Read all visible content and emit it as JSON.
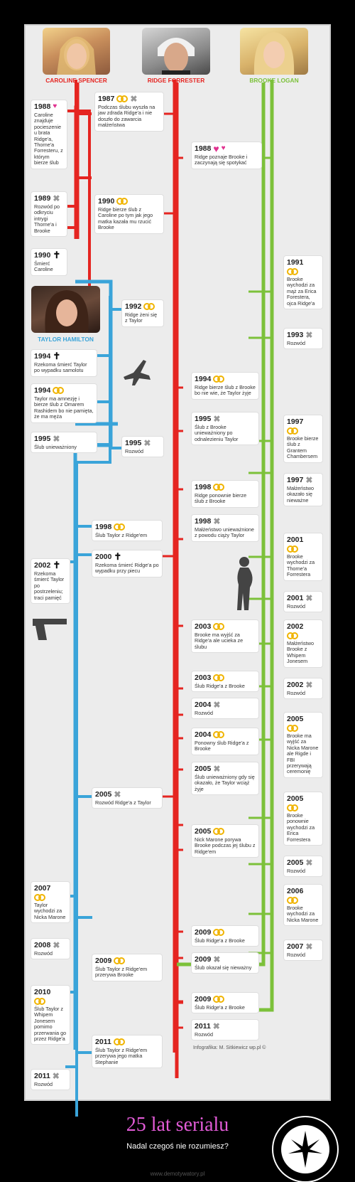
{
  "characters": {
    "caroline": {
      "name": "CAROLINE SPENCER",
      "color": "#e52521"
    },
    "ridge": {
      "name": "RIDGE FORRESTER",
      "color": "#e52521"
    },
    "brooke": {
      "name": "BROOKE LOGAN",
      "color": "#7cc13a"
    },
    "taylor": {
      "name": "TAYLOR HAMILTON",
      "color": "#3aa4d9"
    }
  },
  "colors": {
    "red": "#e52521",
    "green": "#7cc13a",
    "blue": "#3aa4d9",
    "ring": "#f0b400",
    "heart": "#e0318f"
  },
  "cards": {
    "c1988": {
      "year": "1988",
      "text": "Caroline znajduje pocieszenie u brata Ridge'a, Thorne'a Forresteru, z którym bierze ślub"
    },
    "c1989": {
      "year": "1989",
      "text": "Rozwód po odkryciu intrygi Thorne'a i Brooke"
    },
    "c1990": {
      "year": "1990",
      "text": "Śmierć Caroline"
    },
    "r1987": {
      "year": "1987",
      "text": "Podczas ślubu wyszła na jaw zdrada Ridge'a i nie doszło do zawarcia małżeństwa"
    },
    "r1990": {
      "year": "1990",
      "text": "Ridge bierze ślub z Caroline po tym jak jego matka kazała mu rzucić Brooke"
    },
    "r1988": {
      "year": "1988",
      "text": "Ridge poznaje Brooke i zaczynają się spotykać"
    },
    "t1992": {
      "year": "1992",
      "text": "Ridge żeni się z Taylor"
    },
    "t1994a": {
      "year": "1994",
      "text": "Rzekoma śmierć Taylor po wypadku samolotu"
    },
    "t1994b": {
      "year": "1994",
      "text": "Taylor ma amnezję i bierze ślub z Omarem Rashidem bo nie pamięta, że ma męża"
    },
    "t1995": {
      "year": "1995",
      "text": "Ślub unieważniony"
    },
    "tr1995": {
      "year": "1995",
      "text": "Rozwód"
    },
    "b1991": {
      "year": "1991",
      "text": "Brooke wychodzi za mąż za Erica Forestera, ojca Ridge'a"
    },
    "b1993": {
      "year": "1993",
      "text": "Rozwód"
    },
    "r1994": {
      "year": "1994",
      "text": "Ridge bierze ślub z Brooke bo nie wie, że Taylor żyje"
    },
    "r1995": {
      "year": "1995",
      "text": "Ślub z Brooke unieważniony po odnalezieniu Taylor"
    },
    "b1997a": {
      "year": "1997",
      "text": "Brooke bierze ślub z Grantem Chambersem"
    },
    "b1997b": {
      "year": "1997",
      "text": "Małżeństwo okazało się nieważne"
    },
    "r1998a": {
      "year": "1998",
      "text": "Ridge ponownie bierze ślub z Brooke"
    },
    "r1998b": {
      "year": "1998",
      "text": "Małżeństwo unieważnione z powodu ciąży Taylor"
    },
    "t1998": {
      "year": "1998",
      "text": "Ślub Taylor z Ridge'em"
    },
    "t2000": {
      "year": "2000",
      "text": "Rzekoma śmierć Ridge'a po wypadku przy piecu"
    },
    "t2002": {
      "year": "2002",
      "text": "Rzekoma śmierć Taylor po postrzeleniu; traci pamięć"
    },
    "b2001a": {
      "year": "2001",
      "text": "Brooke wychodzi za Thorne'a Forrestera"
    },
    "b2001b": {
      "year": "2001",
      "text": "Rozwód"
    },
    "r2003a": {
      "year": "2003",
      "text": "Brooke ma wyjść za Ridge'a ale ucieka ze ślubu"
    },
    "b2002a": {
      "year": "2002",
      "text": "Małżeństwo Brooke z Whipem Jonesem"
    },
    "b2002b": {
      "year": "2002",
      "text": "Rozwód"
    },
    "r2003b": {
      "year": "2003",
      "text": "Ślub Ridge'a z Brooke"
    },
    "r2004a": {
      "year": "2004",
      "text": "Rozwód"
    },
    "r2004b": {
      "year": "2004",
      "text": "Ponowny ślub Ridge'a z Brooke"
    },
    "r2005a": {
      "year": "2005",
      "text": "Ślub unieważniony gdy się okazało, że Taylor wciąż żyje"
    },
    "b2005a": {
      "year": "2005",
      "text": "Brooke ma wyjść za Nicka Marone ale Rigde i FBI przerywają ceremonię"
    },
    "t2005": {
      "year": "2005",
      "text": "Rozwód Ridge'a z Taylor"
    },
    "r2005b": {
      "year": "2005",
      "text": "Nick Marone porywa Brooke podczas jej ślubu z Ridge'em"
    },
    "b2005b": {
      "year": "2005",
      "text": "Brooke ponownie wychodzi za Erica Forrestera"
    },
    "b2005c": {
      "year": "2005",
      "text": "Rozwód"
    },
    "t2007": {
      "year": "2007",
      "text": "Taylor wychodzi za Nicka Marone"
    },
    "t2008": {
      "year": "2008",
      "text": "Rozwód"
    },
    "b2006": {
      "year": "2006",
      "text": "Brooke wychodzi za Nicka Marone"
    },
    "b2007": {
      "year": "2007",
      "text": "Rozwód"
    },
    "r2009a": {
      "year": "2009",
      "text": "Ślub Ridge'a z Brooke"
    },
    "r2009b": {
      "year": "2009",
      "text": "Ślub okazał się nieważny"
    },
    "t2009": {
      "year": "2009",
      "text": "Ślub Taylor z Ridge'em przerywa Brooke"
    },
    "t2010": {
      "year": "2010",
      "text": "Ślub Taylor z Whipem Jonesem pomimo przerwania go przez Ridge'a"
    },
    "t2011a": {
      "year": "2011",
      "text": "Rozwód"
    },
    "r2009c": {
      "year": "2009",
      "text": "Ślub Ridge'a z Brooke"
    },
    "r2011": {
      "year": "2011",
      "text": "Rozwód"
    },
    "t2011b": {
      "year": "2011",
      "text": "Ślub Taylor z Ridge'em przerywa jego matka Stephanie"
    }
  },
  "credit": "Infografika: M. Sitkiewicz wp.pl ©",
  "poster": {
    "title": "25 lat serialu",
    "subtitle": "Nadal czegoś nie rozumiesz?",
    "site": "www.demotywatory.pl"
  }
}
